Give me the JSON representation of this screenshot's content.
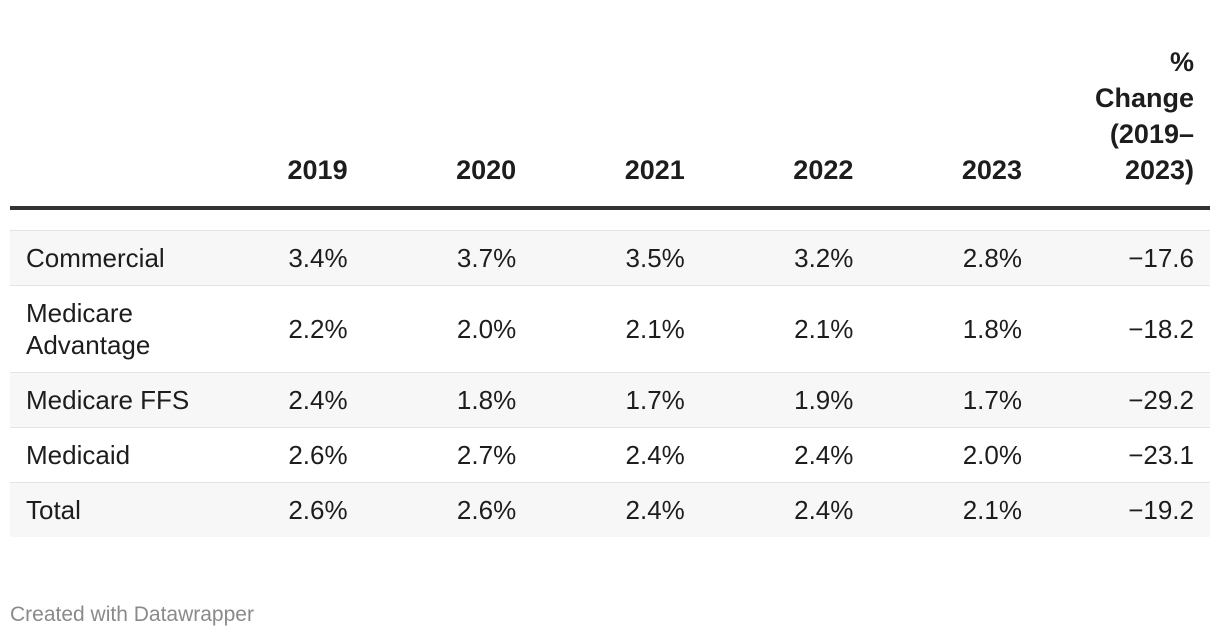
{
  "chart_data": {
    "type": "table",
    "title": "",
    "columns": [
      "",
      "2019",
      "2020",
      "2021",
      "2022",
      "2023",
      "% Change (2019–2023)"
    ],
    "change_header_lines": [
      "%",
      "Change",
      "(2019–",
      "2023)"
    ],
    "rows": [
      {
        "label": "Commercial",
        "values": [
          "3.4%",
          "3.7%",
          "3.5%",
          "3.2%",
          "2.8%"
        ],
        "change": "−17.6"
      },
      {
        "label": "Medicare Advantage",
        "values": [
          "2.2%",
          "2.0%",
          "2.1%",
          "2.1%",
          "1.8%"
        ],
        "change": "−18.2"
      },
      {
        "label": "Medicare FFS",
        "values": [
          "2.4%",
          "1.8%",
          "1.7%",
          "1.9%",
          "1.7%"
        ],
        "change": "−29.2"
      },
      {
        "label": "Medicaid",
        "values": [
          "2.6%",
          "2.7%",
          "2.4%",
          "2.4%",
          "2.0%"
        ],
        "change": "−23.1"
      },
      {
        "label": "Total",
        "values": [
          "2.6%",
          "2.6%",
          "2.4%",
          "2.4%",
          "2.1%"
        ],
        "change": "−19.2"
      }
    ]
  },
  "footer": {
    "credit": "Created with Datawrapper"
  },
  "colors": {
    "header_rule": "#333333",
    "row_stripe": "#f7f7f7",
    "row_border": "#e3e3e3",
    "footer_text": "#8a8a8a"
  }
}
